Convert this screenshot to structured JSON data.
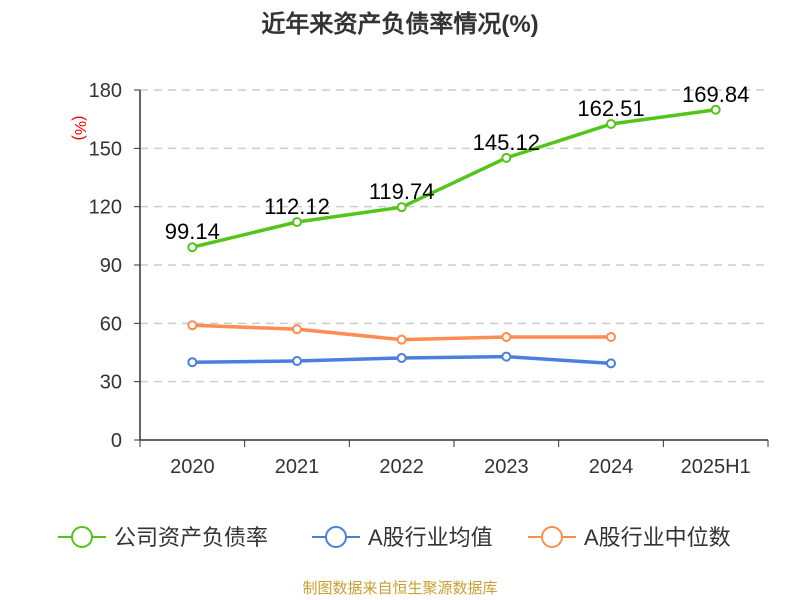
{
  "chart_data": {
    "type": "line",
    "title": "近年来资产负债率情况(%)",
    "ylabel": "(%)",
    "categories": [
      "2020",
      "2021",
      "2022",
      "2023",
      "2024",
      "2025H1"
    ],
    "ylim": [
      0,
      180
    ],
    "yticks": [
      0,
      30,
      60,
      90,
      120,
      150,
      180
    ],
    "grid": true,
    "legend_placement": "bottom",
    "series": [
      {
        "name": "公司资产负债率",
        "color": "#52c41a",
        "values": [
          99.14,
          112.12,
          119.74,
          145.12,
          162.51,
          169.84
        ],
        "labels": [
          "99.14",
          "112.12",
          "119.74",
          "145.12",
          "162.51",
          "169.84"
        ]
      },
      {
        "name": "A股行业均值",
        "color": "#4a7fe0",
        "values": [
          40.0,
          40.6,
          42.2,
          42.9,
          39.4,
          null
        ]
      },
      {
        "name": "A股行业中位数",
        "color": "#ff8c50",
        "values": [
          59.0,
          57.0,
          51.6,
          53.0,
          53.0,
          null
        ]
      }
    ]
  },
  "source": "制图数据来自恒生聚源数据库"
}
